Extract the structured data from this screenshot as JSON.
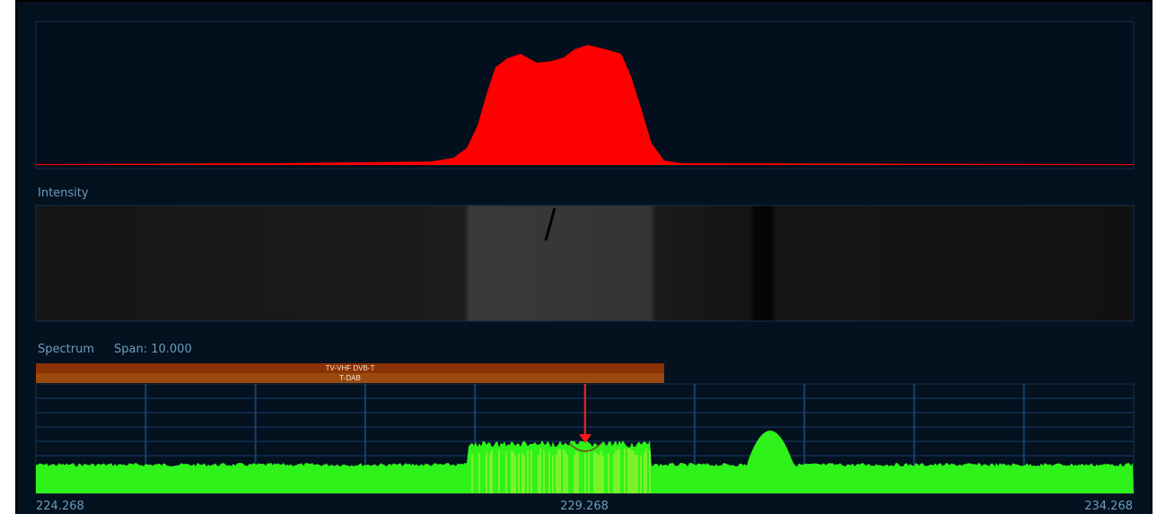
{
  "panels": {
    "intensity_label": "Intensity",
    "spectrum_label": "Spectrum",
    "span": "Span: 10.000"
  },
  "band": {
    "lines": [
      "TV-VHF DVB-T",
      "T-DAB"
    ]
  },
  "frequency_axis": {
    "labels": [
      "224.268",
      "229.268",
      "234.268"
    ]
  }
}
